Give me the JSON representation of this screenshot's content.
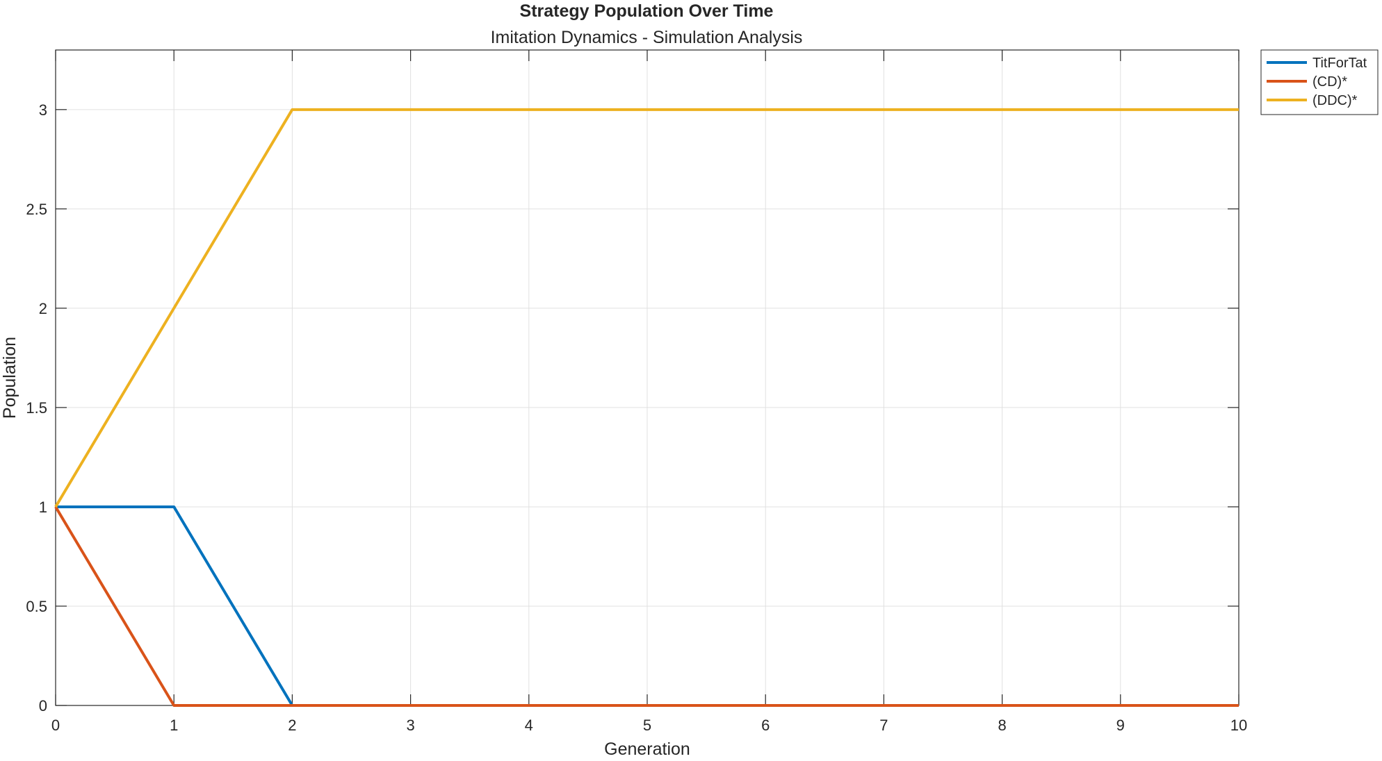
{
  "chart_data": {
    "type": "line",
    "title": "Strategy Population Over Time",
    "subtitle": "Imitation Dynamics - Simulation Analysis",
    "xlabel": "Generation",
    "ylabel": "Population",
    "xlim": [
      0,
      10
    ],
    "ylim": [
      0,
      3.3
    ],
    "xticks": [
      0,
      1,
      2,
      3,
      4,
      5,
      6,
      7,
      8,
      9,
      10
    ],
    "yticks": [
      0,
      0.5,
      1,
      1.5,
      2,
      2.5,
      3
    ],
    "grid": true,
    "legend_position": "outside-top-right",
    "x": [
      0,
      1,
      2,
      3,
      4,
      5,
      6,
      7,
      8,
      9,
      10
    ],
    "series": [
      {
        "name": "TitForTat",
        "color": "#0072BD",
        "values": [
          1,
          1,
          0,
          0,
          0,
          0,
          0,
          0,
          0,
          0,
          0
        ]
      },
      {
        "name": "(CD)*",
        "color": "#D95319",
        "values": [
          1,
          0,
          0,
          0,
          0,
          0,
          0,
          0,
          0,
          0,
          0
        ]
      },
      {
        "name": "(DDC)*",
        "color": "#EDB120",
        "values": [
          1,
          2,
          3,
          3,
          3,
          3,
          3,
          3,
          3,
          3,
          3
        ]
      }
    ]
  }
}
